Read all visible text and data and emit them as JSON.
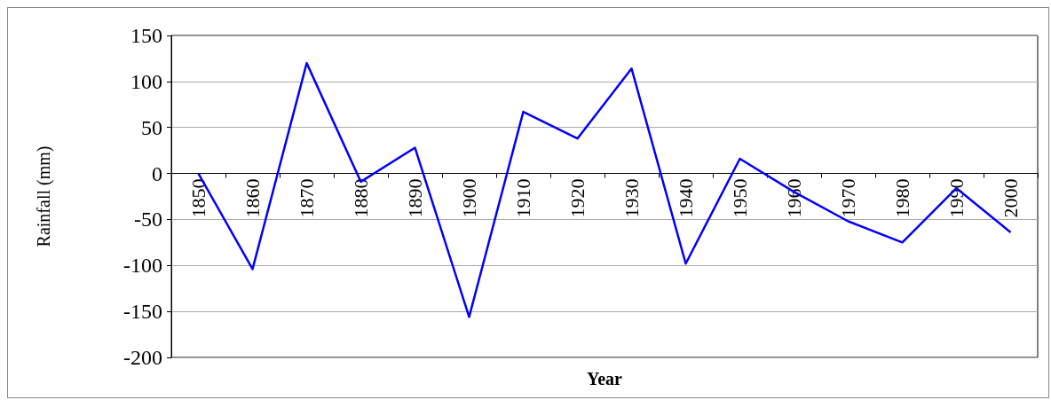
{
  "chart_data": {
    "type": "line",
    "xlabel": "Year",
    "ylabel": "Rainfall (mm)",
    "categories": [
      "1850",
      "1860",
      "1870",
      "1880",
      "1890",
      "1900",
      "1910",
      "1920",
      "1930",
      "1940",
      "1950",
      "1960",
      "1970",
      "1980",
      "1990",
      "2000"
    ],
    "series": [
      {
        "color": "#0000ff",
        "values": [
          0,
          -104,
          120,
          -9,
          28,
          -156,
          67,
          38,
          114,
          -98,
          16,
          -20,
          -52,
          -75,
          -16,
          -64
        ]
      }
    ],
    "ylim": [
      -200,
      150
    ],
    "yticks": [
      -200,
      -150,
      -100,
      -50,
      0,
      50,
      100,
      150
    ],
    "grid": "y",
    "marker": "none",
    "line_style": "solid"
  }
}
